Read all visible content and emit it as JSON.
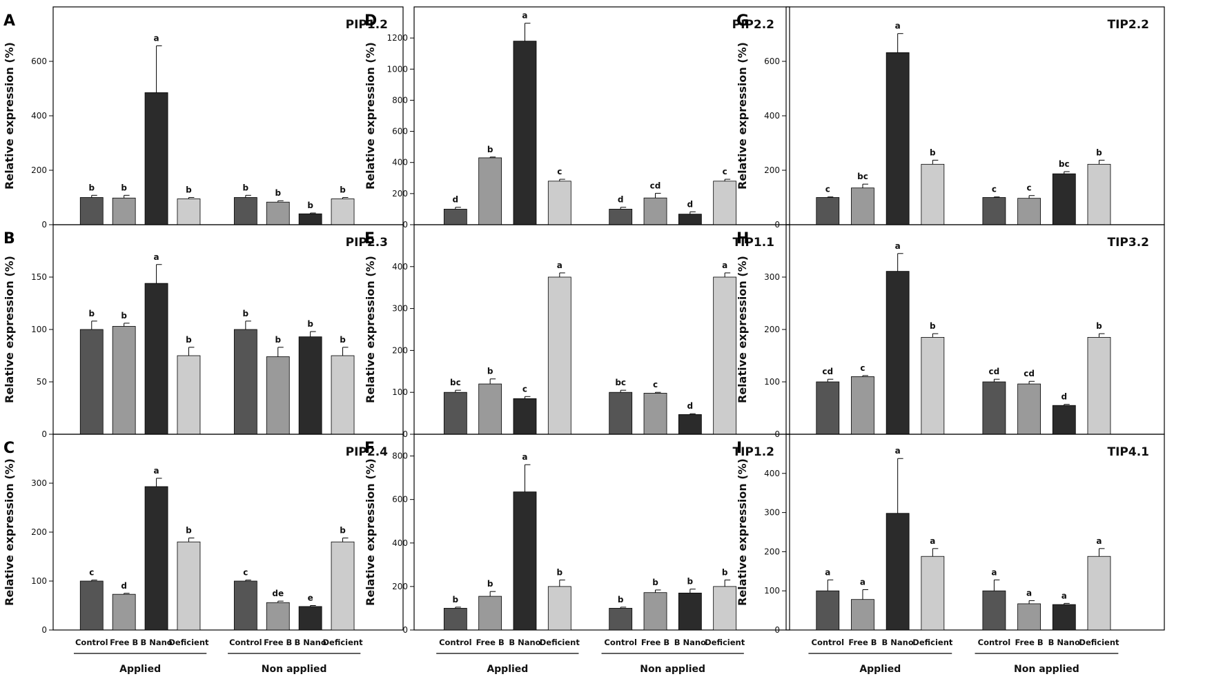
{
  "colors": {
    "Control": "#555555",
    "Free B": "#9a9a9a",
    "B Nano": "#2b2b2b",
    "Deficient": "#cccccc"
  },
  "chart_data": [
    {
      "panel": "A",
      "type": "bar",
      "title": "PIP1.2",
      "ylabel": "Relative expression (%)",
      "ylim": [
        0,
        800
      ],
      "yticks": [
        0,
        200,
        400,
        600
      ],
      "groups": [
        "Applied",
        "Non applied"
      ],
      "categories": [
        "Control",
        "Free B",
        "B Nano",
        "Deficient"
      ],
      "series": [
        {
          "group": "Applied",
          "values": [
            100,
            98,
            485,
            95
          ],
          "errors": [
            8,
            10,
            172,
            5
          ],
          "letters": [
            "b",
            "b",
            "a",
            "b"
          ]
        },
        {
          "group": "Non applied",
          "values": [
            100,
            83,
            40,
            95
          ],
          "errors": [
            8,
            5,
            3,
            5
          ],
          "letters": [
            "b",
            "b",
            "b",
            "b"
          ]
        }
      ]
    },
    {
      "panel": "B",
      "type": "bar",
      "title": "PIP2.3",
      "ylabel": "Relative expression (%)",
      "ylim": [
        0,
        200
      ],
      "yticks": [
        0,
        50,
        100,
        150
      ],
      "groups": [
        "Applied",
        "Non applied"
      ],
      "categories": [
        "Control",
        "Free B",
        "B Nano",
        "Deficient"
      ],
      "series": [
        {
          "group": "Applied",
          "values": [
            100,
            103,
            144,
            75
          ],
          "errors": [
            8,
            3,
            18,
            8
          ],
          "letters": [
            "b",
            "b",
            "a",
            "b"
          ]
        },
        {
          "group": "Non applied",
          "values": [
            100,
            74,
            93,
            75
          ],
          "errors": [
            8,
            9,
            5,
            8
          ],
          "letters": [
            "b",
            "b",
            "b",
            "b"
          ]
        }
      ]
    },
    {
      "panel": "C",
      "type": "bar",
      "title": "PIP2.4",
      "ylabel": "Relative expression (%)",
      "ylim": [
        0,
        400
      ],
      "yticks": [
        0,
        100,
        200,
        300
      ],
      "groups": [
        "Applied",
        "Non applied"
      ],
      "categories": [
        "Control",
        "Free B",
        "B Nano",
        "Deficient"
      ],
      "series": [
        {
          "group": "Applied",
          "values": [
            100,
            73,
            293,
            180
          ],
          "errors": [
            2,
            2,
            17,
            8
          ],
          "letters": [
            "c",
            "d",
            "a",
            "b"
          ]
        },
        {
          "group": "Non applied",
          "values": [
            100,
            56,
            48,
            180
          ],
          "errors": [
            2,
            3,
            2,
            8
          ],
          "letters": [
            "c",
            "de",
            "e",
            "b"
          ]
        }
      ]
    },
    {
      "panel": "D",
      "type": "bar",
      "title": "PIP2.2",
      "ylabel": "Relative expression (%)",
      "ylim": [
        0,
        1400
      ],
      "yticks": [
        0,
        200,
        400,
        600,
        800,
        1000,
        1200
      ],
      "groups": [
        "Applied",
        "Non applied"
      ],
      "categories": [
        "Control",
        "Free B",
        "B Nano",
        "Deficient"
      ],
      "series": [
        {
          "group": "Applied",
          "values": [
            100,
            430,
            1180,
            280
          ],
          "errors": [
            12,
            5,
            115,
            12
          ],
          "letters": [
            "d",
            "b",
            "a",
            "c"
          ]
        },
        {
          "group": "Non applied",
          "values": [
            100,
            172,
            68,
            280
          ],
          "errors": [
            12,
            30,
            15,
            12
          ],
          "letters": [
            "d",
            "cd",
            "d",
            "c"
          ]
        }
      ]
    },
    {
      "panel": "E",
      "type": "bar",
      "title": "TIP1.1",
      "ylabel": "Relative expression (%)",
      "ylim": [
        0,
        500
      ],
      "yticks": [
        0,
        100,
        200,
        300,
        400
      ],
      "groups": [
        "Applied",
        "Non applied"
      ],
      "categories": [
        "Control",
        "Free B",
        "B Nano",
        "Deficient"
      ],
      "series": [
        {
          "group": "Applied",
          "values": [
            100,
            120,
            85,
            375
          ],
          "errors": [
            5,
            12,
            5,
            10
          ],
          "letters": [
            "bc",
            "b",
            "c",
            "a"
          ]
        },
        {
          "group": "Non applied",
          "values": [
            100,
            98,
            47,
            375
          ],
          "errors": [
            5,
            2,
            2,
            10
          ],
          "letters": [
            "bc",
            "c",
            "d",
            "a"
          ]
        }
      ]
    },
    {
      "panel": "F",
      "type": "bar",
      "title": "TIP1.2",
      "ylabel": "Relative expression (%)",
      "ylim": [
        0,
        900
      ],
      "yticks": [
        0,
        200,
        400,
        600,
        800
      ],
      "groups": [
        "Applied",
        "Non applied"
      ],
      "categories": [
        "Control",
        "Free B",
        "B Nano",
        "Deficient"
      ],
      "series": [
        {
          "group": "Applied",
          "values": [
            100,
            155,
            635,
            200
          ],
          "errors": [
            5,
            22,
            125,
            30
          ],
          "letters": [
            "b",
            "b",
            "a",
            "b"
          ]
        },
        {
          "group": "Non applied",
          "values": [
            100,
            172,
            170,
            200
          ],
          "errors": [
            5,
            12,
            18,
            30
          ],
          "letters": [
            "b",
            "b",
            "b",
            "b"
          ]
        }
      ]
    },
    {
      "panel": "G",
      "type": "bar",
      "title": "TIP2.2",
      "ylabel": "Relative expression (%)",
      "ylim": [
        0,
        800
      ],
      "yticks": [
        0,
        200,
        400,
        600
      ],
      "groups": [
        "Applied",
        "Non applied"
      ],
      "categories": [
        "Control",
        "Free B",
        "B Nano",
        "Deficient"
      ],
      "series": [
        {
          "group": "Applied",
          "values": [
            100,
            135,
            632,
            222
          ],
          "errors": [
            2,
            14,
            70,
            15
          ],
          "letters": [
            "c",
            "bc",
            "a",
            "b"
          ]
        },
        {
          "group": "Non applied",
          "values": [
            100,
            97,
            187,
            222
          ],
          "errors": [
            2,
            10,
            8,
            15
          ],
          "letters": [
            "c",
            "c",
            "bc",
            "b"
          ]
        }
      ]
    },
    {
      "panel": "H",
      "type": "bar",
      "title": "TIP3.2",
      "ylabel": "Relative expression (%)",
      "ylim": [
        0,
        400
      ],
      "yticks": [
        0,
        100,
        200,
        300
      ],
      "groups": [
        "Applied",
        "Non applied"
      ],
      "categories": [
        "Control",
        "Free B",
        "B Nano",
        "Deficient"
      ],
      "series": [
        {
          "group": "Applied",
          "values": [
            100,
            110,
            311,
            185
          ],
          "errors": [
            5,
            2,
            34,
            7
          ],
          "letters": [
            "cd",
            "c",
            "a",
            "b"
          ]
        },
        {
          "group": "Non applied",
          "values": [
            100,
            96,
            55,
            185
          ],
          "errors": [
            5,
            5,
            2,
            7
          ],
          "letters": [
            "cd",
            "cd",
            "d",
            "b"
          ]
        }
      ]
    },
    {
      "panel": "I",
      "type": "bar",
      "title": "TIP4.1",
      "ylabel": "Relative expression (%)",
      "ylim": [
        0,
        500
      ],
      "yticks": [
        0,
        100,
        200,
        300,
        400
      ],
      "groups": [
        "Applied",
        "Non applied"
      ],
      "categories": [
        "Control",
        "Free B",
        "B Nano",
        "Deficient"
      ],
      "series": [
        {
          "group": "Applied",
          "values": [
            100,
            78,
            298,
            188
          ],
          "errors": [
            28,
            25,
            140,
            20
          ],
          "letters": [
            "a",
            "a",
            "a",
            "a"
          ]
        },
        {
          "group": "Non applied",
          "values": [
            100,
            67,
            65,
            188
          ],
          "errors": [
            28,
            8,
            3,
            20
          ],
          "letters": [
            "a",
            "a",
            "a",
            "a"
          ]
        }
      ]
    }
  ]
}
